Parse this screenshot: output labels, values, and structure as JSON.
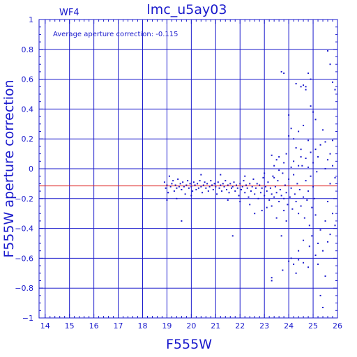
{
  "chart_data": {
    "type": "scatter",
    "title": "lmc_u5ay03",
    "panel_label": "WF4",
    "annotation": "Average aperture correction:  -0.115",
    "xlabel": "F555W",
    "ylabel": "F555W aperture correction",
    "xlim": [
      13.75,
      26
    ],
    "ylim": [
      -1,
      1
    ],
    "x_ticks": [
      14,
      15,
      16,
      17,
      18,
      19,
      20,
      21,
      22,
      23,
      24,
      25,
      26
    ],
    "y_ticks": [
      -1,
      -0.8,
      -0.6,
      -0.4,
      -0.2,
      0,
      0.2,
      0.4,
      0.6,
      0.8,
      1
    ],
    "x_tick_labels": [
      "14",
      "15",
      "16",
      "17",
      "18",
      "19",
      "20",
      "21",
      "22",
      "23",
      "24",
      "25",
      "26"
    ],
    "y_tick_labels": [
      "−1",
      "−0.8",
      "−0.6",
      "−0.4",
      "−0.2",
      "0",
      "0.2",
      "0.4",
      "0.6",
      "0.8",
      "1"
    ],
    "grid": true,
    "reference_line": {
      "y": -0.115,
      "color": "#dd2222"
    },
    "point_color": "#1a1acc",
    "axis_color": "#1a1acc",
    "points": [
      [
        18.9,
        -0.09
      ],
      [
        18.95,
        -0.13
      ],
      [
        19.0,
        -0.11
      ],
      [
        19.05,
        -0.16
      ],
      [
        19.1,
        -0.05
      ],
      [
        19.15,
        -0.12
      ],
      [
        19.2,
        -0.1
      ],
      [
        19.25,
        -0.08
      ],
      [
        19.3,
        -0.15
      ],
      [
        19.35,
        -0.11
      ],
      [
        19.4,
        -0.13
      ],
      [
        19.45,
        -0.07
      ],
      [
        19.5,
        -0.12
      ],
      [
        19.55,
        -0.1
      ],
      [
        19.6,
        -0.14
      ],
      [
        19.65,
        -0.09
      ],
      [
        19.7,
        -0.12
      ],
      [
        19.75,
        -0.17
      ],
      [
        19.8,
        -0.11
      ],
      [
        19.85,
        -0.08
      ],
      [
        19.9,
        -0.13
      ],
      [
        19.95,
        -0.1
      ],
      [
        20.0,
        -0.12
      ],
      [
        20.05,
        -0.15
      ],
      [
        20.1,
        -0.09
      ],
      [
        20.15,
        -0.11
      ],
      [
        20.2,
        -0.14
      ],
      [
        20.25,
        -0.1
      ],
      [
        20.3,
        -0.13
      ],
      [
        20.35,
        -0.08
      ],
      [
        20.4,
        -0.12
      ],
      [
        20.45,
        -0.16
      ],
      [
        20.5,
        -0.11
      ],
      [
        20.55,
        -0.09
      ],
      [
        20.6,
        -0.13
      ],
      [
        20.65,
        -0.1
      ],
      [
        20.7,
        -0.15
      ],
      [
        20.75,
        -0.12
      ],
      [
        20.8,
        -0.08
      ],
      [
        20.85,
        -0.11
      ],
      [
        20.9,
        -0.14
      ],
      [
        20.95,
        -0.1
      ],
      [
        21.0,
        -0.12
      ],
      [
        21.05,
        -0.17
      ],
      [
        21.1,
        -0.09
      ],
      [
        21.15,
        -0.13
      ],
      [
        21.2,
        -0.11
      ],
      [
        21.25,
        -0.15
      ],
      [
        21.3,
        -0.1
      ],
      [
        21.35,
        -0.12
      ],
      [
        21.4,
        -0.08
      ],
      [
        21.45,
        -0.14
      ],
      [
        21.5,
        -0.11
      ],
      [
        21.55,
        -0.16
      ],
      [
        21.6,
        -0.1
      ],
      [
        21.65,
        -0.13
      ],
      [
        21.7,
        -0.12
      ],
      [
        21.75,
        -0.09
      ],
      [
        21.8,
        -0.15
      ],
      [
        21.85,
        -0.11
      ],
      [
        21.9,
        -0.13
      ],
      [
        21.95,
        -0.18
      ],
      [
        22.0,
        -0.1
      ],
      [
        22.05,
        -0.14
      ],
      [
        22.1,
        -0.12
      ],
      [
        22.15,
        -0.08
      ],
      [
        22.2,
        -0.16
      ],
      [
        22.25,
        -0.11
      ],
      [
        22.3,
        -0.13
      ],
      [
        22.35,
        -0.19
      ],
      [
        22.4,
        -0.1
      ],
      [
        22.45,
        -0.15
      ],
      [
        22.5,
        -0.12
      ],
      [
        22.55,
        -0.07
      ],
      [
        22.6,
        -0.17
      ],
      [
        22.65,
        -0.13
      ],
      [
        22.7,
        -0.1
      ],
      [
        22.75,
        -0.2
      ],
      [
        22.8,
        -0.11
      ],
      [
        22.85,
        -0.16
      ],
      [
        22.9,
        -0.13
      ],
      [
        22.95,
        -0.06
      ],
      [
        23.0,
        -0.18
      ],
      [
        23.05,
        -0.12
      ],
      [
        23.1,
        -0.15
      ],
      [
        23.15,
        -0.09
      ],
      [
        23.2,
        -0.21
      ],
      [
        23.25,
        -0.13
      ],
      [
        23.3,
        -0.17
      ],
      [
        23.35,
        -0.05
      ],
      [
        23.4,
        -0.19
      ],
      [
        23.45,
        -0.12
      ],
      [
        23.5,
        -0.16
      ],
      [
        23.55,
        -0.08
      ],
      [
        23.6,
        -0.22
      ],
      [
        23.65,
        -0.14
      ],
      [
        23.7,
        -0.18
      ],
      [
        23.75,
        -0.03
      ],
      [
        23.8,
        -0.2
      ],
      [
        23.85,
        -0.11
      ],
      [
        23.9,
        -0.16
      ],
      [
        23.95,
        -0.24
      ],
      [
        24.0,
        -0.07
      ],
      [
        24.05,
        -0.19
      ],
      [
        24.1,
        -0.13
      ],
      [
        24.15,
        -0.27
      ],
      [
        24.2,
        -0.04
      ],
      [
        24.25,
        -0.17
      ],
      [
        24.3,
        -0.22
      ],
      [
        24.35,
        -0.1
      ],
      [
        24.4,
        -0.3
      ],
      [
        24.45,
        -0.14
      ],
      [
        24.5,
        -0.25
      ],
      [
        24.55,
        0.02
      ],
      [
        24.6,
        -0.19
      ],
      [
        24.65,
        -0.33
      ],
      [
        24.7,
        -0.08
      ],
      [
        24.75,
        -0.21
      ],
      [
        24.8,
        -0.15
      ],
      [
        24.85,
        -0.38
      ],
      [
        24.9,
        -0.05
      ],
      [
        24.95,
        -0.26
      ],
      [
        25.0,
        -0.12
      ],
      [
        25.05,
        -0.2
      ],
      [
        25.1,
        -0.31
      ],
      [
        25.15,
        -0.02
      ],
      [
        19.0,
        -0.21
      ],
      [
        19.4,
        -0.2
      ],
      [
        19.6,
        -0.35
      ],
      [
        20.0,
        -0.18
      ],
      [
        20.4,
        -0.04
      ],
      [
        21.2,
        -0.04
      ],
      [
        21.7,
        -0.45
      ],
      [
        22.2,
        -0.05
      ],
      [
        22.6,
        -0.3
      ],
      [
        22.9,
        -0.28
      ],
      [
        23.0,
        -0.03
      ],
      [
        23.3,
        -0.25
      ],
      [
        23.5,
        -0.33
      ],
      [
        23.6,
        -0.01
      ],
      [
        23.7,
        -0.45
      ],
      [
        23.9,
        -0.35
      ],
      [
        21.5,
        -0.21
      ],
      [
        22.0,
        -0.22
      ],
      [
        22.4,
        -0.24
      ],
      [
        23.1,
        -0.26
      ],
      [
        23.4,
        -0.06
      ],
      [
        23.8,
        -0.28
      ],
      [
        23.3,
        -0.73
      ],
      [
        23.3,
        -0.75
      ],
      [
        23.75,
        -0.68
      ],
      [
        24.0,
        -0.62
      ],
      [
        24.1,
        -0.6
      ],
      [
        24.2,
        -0.64
      ],
      [
        24.3,
        -0.7
      ],
      [
        24.4,
        -0.61
      ],
      [
        24.6,
        -0.63
      ],
      [
        24.8,
        -0.66
      ],
      [
        25.1,
        -0.58
      ],
      [
        25.2,
        -0.5
      ],
      [
        25.3,
        -0.41
      ],
      [
        25.4,
        -0.55
      ],
      [
        25.5,
        -0.35
      ],
      [
        25.6,
        -0.49
      ],
      [
        25.7,
        -0.44
      ],
      [
        25.8,
        -0.3
      ],
      [
        25.9,
        -0.38
      ],
      [
        25.3,
        -0.85
      ],
      [
        25.5,
        -0.72
      ],
      [
        25.4,
        -0.93
      ],
      [
        25.2,
        -0.64
      ],
      [
        25.6,
        -0.22
      ],
      [
        24.85,
        -0.52
      ],
      [
        24.95,
        -0.45
      ],
      [
        24.6,
        -0.48
      ],
      [
        24.4,
        -0.55
      ],
      [
        25.7,
        -0.1
      ],
      [
        25.9,
        -0.06
      ],
      [
        25.8,
        0.02
      ],
      [
        23.7,
        0.65
      ],
      [
        23.8,
        0.64
      ],
      [
        24.6,
        0.56
      ],
      [
        24.7,
        0.55
      ],
      [
        24.8,
        0.64
      ],
      [
        24.9,
        0.6
      ],
      [
        24.7,
        0.53
      ],
      [
        24.5,
        0.55
      ],
      [
        24.3,
        0.57
      ],
      [
        25.6,
        0.79
      ],
      [
        25.7,
        0.7
      ],
      [
        25.8,
        0.58
      ],
      [
        25.9,
        0.53
      ],
      [
        24.9,
        0.42
      ],
      [
        25.0,
        0.38
      ],
      [
        25.1,
        0.33
      ],
      [
        24.0,
        0.36
      ],
      [
        24.0,
        0.22
      ],
      [
        24.1,
        0.27
      ],
      [
        24.3,
        0.14
      ],
      [
        24.4,
        0.25
      ],
      [
        24.5,
        0.13
      ],
      [
        24.6,
        0.29
      ],
      [
        24.8,
        0.19
      ],
      [
        24.9,
        0.11
      ],
      [
        25.1,
        0.13
      ],
      [
        25.3,
        0.16
      ],
      [
        25.4,
        0.26
      ],
      [
        25.5,
        0.18
      ],
      [
        25.7,
        0.1
      ],
      [
        25.8,
        0.19
      ],
      [
        24.2,
        0.2
      ],
      [
        23.5,
        0.06
      ],
      [
        23.6,
        0.08
      ],
      [
        23.8,
        0.04
      ],
      [
        23.9,
        0.1
      ],
      [
        24.1,
        0.01
      ],
      [
        24.2,
        0.05
      ],
      [
        24.4,
        0.02
      ],
      [
        24.7,
        0.07
      ],
      [
        25.0,
        0.04
      ],
      [
        25.2,
        0.08
      ],
      [
        25.5,
        0.0
      ],
      [
        25.6,
        0.06
      ],
      [
        23.3,
        0.09
      ],
      [
        23.4,
        0.02
      ],
      [
        24.5,
        0.08
      ],
      [
        24.8,
        0.01
      ]
    ]
  }
}
